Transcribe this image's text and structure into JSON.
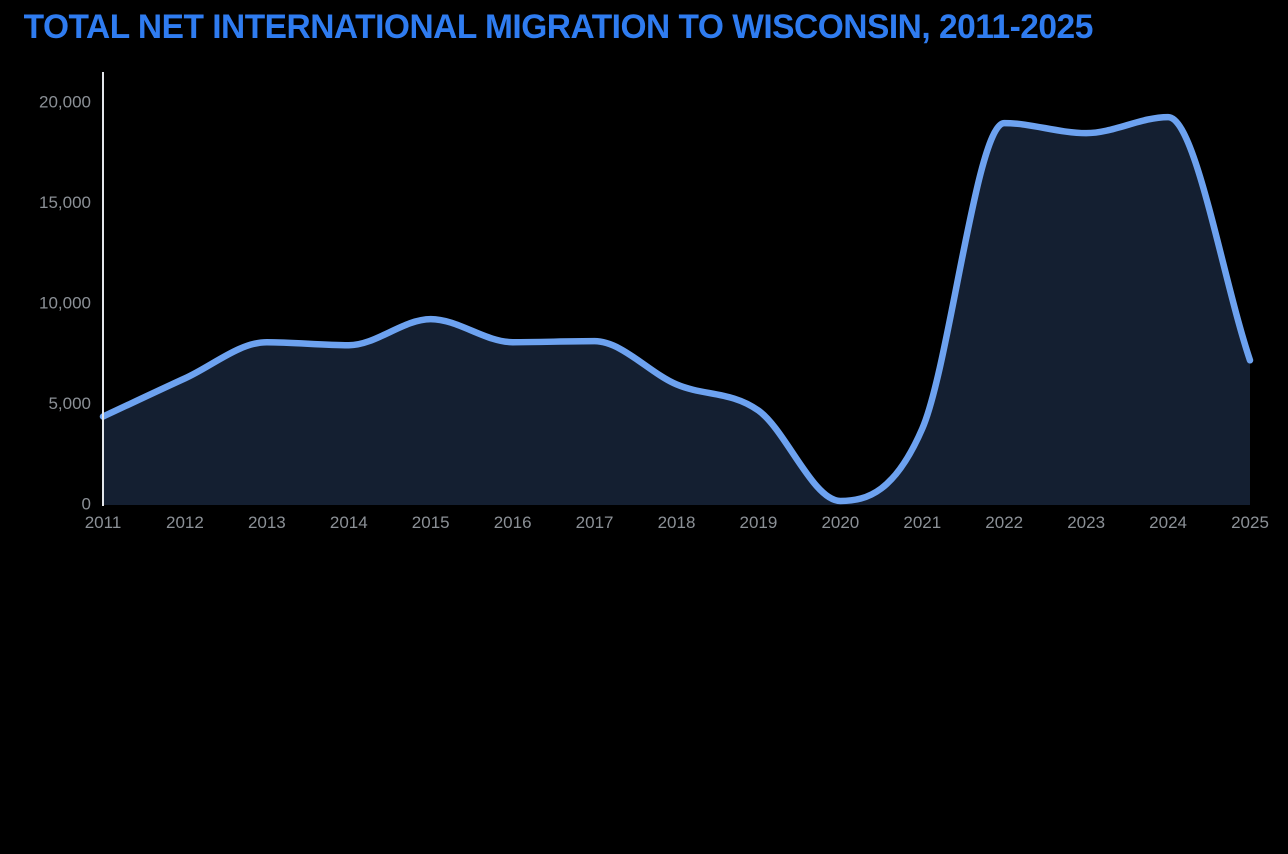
{
  "page": {
    "title": "TOTAL NET INTERNATIONAL MIGRATION TO WISCONSIN, 2011-2025"
  },
  "colors": {
    "background": "#000000",
    "title": "#2f7cf0",
    "line": "#6da2f0",
    "area_fill": "#141f31",
    "axis": "#e3e6ea",
    "tick_label": "#8b9096"
  },
  "chart_data": {
    "type": "area",
    "title": "Total net international migration to Wisconsin, 2011-2025",
    "x": [
      2011,
      2012,
      2013,
      2014,
      2015,
      2016,
      2017,
      2018,
      2019,
      2020,
      2021,
      2022,
      2023,
      2024,
      2025
    ],
    "values": [
      4400,
      6300,
      8100,
      7950,
      9250,
      8100,
      8150,
      6000,
      4700,
      200,
      3800,
      19000,
      18500,
      19300,
      7200
    ],
    "xlabel": "",
    "ylabel": "",
    "ylim": [
      0,
      21000
    ],
    "yticks": [
      0,
      5000,
      10000,
      15000,
      20000
    ],
    "ytick_labels": [
      "0",
      "5,000",
      "10,000",
      "15,000",
      "20,000"
    ],
    "xtick_labels": [
      "2011",
      "2012",
      "2013",
      "2014",
      "2015",
      "2016",
      "2017",
      "2018",
      "2019",
      "2020",
      "2021",
      "2022",
      "2023",
      "2024",
      "2025"
    ],
    "grid": false,
    "legend": false
  }
}
